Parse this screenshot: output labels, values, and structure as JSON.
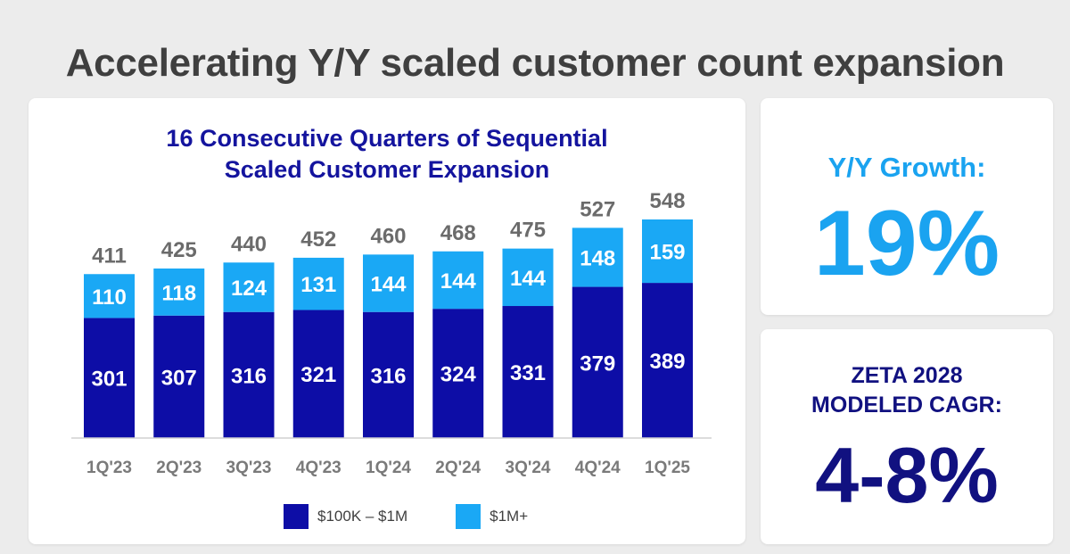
{
  "page": {
    "title": "Accelerating Y/Y scaled customer count expansion"
  },
  "chart": {
    "title_line1": "16 Consecutive Quarters of Sequential",
    "title_line2": "Scaled Customer Expansion"
  },
  "growth_card": {
    "label": "Y/Y Growth:",
    "value": "19%"
  },
  "cagr_card": {
    "label_line1": "ZETA 2028",
    "label_line2": "MODELED CAGR:",
    "value": "4-8%"
  },
  "colors": {
    "dark_blue": "#0d0da6",
    "light_blue": "#1aa8f5",
    "title_blue": "#14149e",
    "total_gray": "#6b6b6b",
    "tick_gray": "#7a7a7a"
  },
  "chart_data": {
    "type": "bar",
    "stacked": true,
    "categories": [
      "1Q'23",
      "2Q'23",
      "3Q'23",
      "4Q'23",
      "1Q'24",
      "2Q'24",
      "3Q'24",
      "4Q'24",
      "1Q'25"
    ],
    "series": [
      {
        "name": "$100K – $1M",
        "color": "#0d0da6",
        "values": [
          301,
          307,
          316,
          321,
          316,
          324,
          331,
          379,
          389
        ]
      },
      {
        "name": "$1M+",
        "color": "#1aa8f5",
        "values": [
          110,
          118,
          124,
          131,
          144,
          144,
          144,
          148,
          159
        ]
      }
    ],
    "totals": [
      411,
      425,
      440,
      452,
      460,
      468,
      475,
      527,
      548
    ],
    "legend_position": "bottom",
    "grid": false
  }
}
